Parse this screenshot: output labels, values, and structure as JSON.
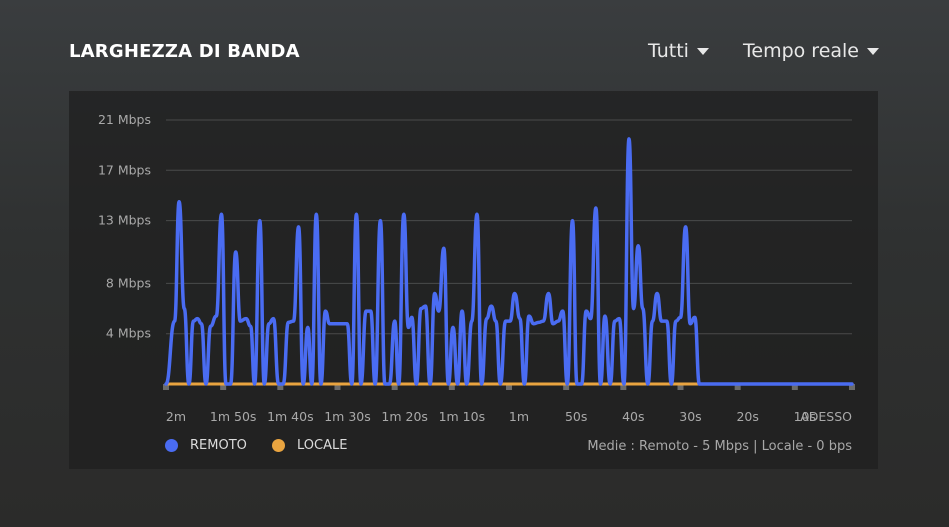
{
  "header": {
    "title": "LARGHEZZA DI BANDA",
    "filter_label": "Tutti",
    "range_label": "Tempo reale"
  },
  "legend": {
    "remote_label": "REMOTO",
    "local_label": "LOCALE"
  },
  "averages_text": "Medie : Remoto  -  5 Mbps | Locale  -  0 bps",
  "colors": {
    "remote": "#4a6cf2",
    "local": "#e9a440",
    "grid": "#4a4b4b",
    "tick": "#a9a9a9"
  },
  "chart_data": {
    "type": "line",
    "title": "LARGHEZZA DI BANDA",
    "xlabel": "",
    "ylabel": "",
    "x_ticks": [
      "2m",
      "1m 50s",
      "1m 40s",
      "1m 30s",
      "1m 20s",
      "1m 10s",
      "1m",
      "50s",
      "40s",
      "30s",
      "20s",
      "10s",
      "ADESSO"
    ],
    "y_ticks": [
      "21 Mbps",
      "17 Mbps",
      "13 Mbps",
      "8 Mbps",
      "4 Mbps"
    ],
    "y_tick_values": [
      21,
      17,
      13,
      8,
      4
    ],
    "ylim": [
      0,
      21
    ],
    "xlim_seconds_ago": [
      120,
      0
    ],
    "grid": true,
    "legend_position": "bottom-left",
    "series": [
      {
        "name": "REMOTO",
        "color": "#4a6cf2",
        "points_seconds_ago_mbps": [
          [
            120,
            0
          ],
          [
            118.5,
            5
          ],
          [
            117.7,
            14.5
          ],
          [
            116.8,
            6
          ],
          [
            116.0,
            0
          ],
          [
            115.2,
            5
          ],
          [
            114.5,
            5.2
          ],
          [
            113.8,
            4.8
          ],
          [
            113.0,
            0
          ],
          [
            112.2,
            4.6
          ],
          [
            111.2,
            5.4
          ],
          [
            110.3,
            13.5
          ],
          [
            109.5,
            0
          ],
          [
            108.7,
            0
          ],
          [
            107.8,
            10.5
          ],
          [
            107.0,
            5
          ],
          [
            106.0,
            5.2
          ],
          [
            105.2,
            4.6
          ],
          [
            104.5,
            0
          ],
          [
            103.6,
            13
          ],
          [
            102.8,
            0
          ],
          [
            102.0,
            4.8
          ],
          [
            101.2,
            5.2
          ],
          [
            100.3,
            0
          ],
          [
            99.5,
            0
          ],
          [
            98.6,
            4.9
          ],
          [
            97.7,
            5
          ],
          [
            96.8,
            12.5
          ],
          [
            96.0,
            0
          ],
          [
            95.2,
            4.5
          ],
          [
            94.5,
            0
          ],
          [
            93.7,
            13.5
          ],
          [
            92.9,
            0
          ],
          [
            92.1,
            5.8
          ],
          [
            91.4,
            4.8
          ],
          [
            90.6,
            4.8
          ],
          [
            89.8,
            4.8
          ],
          [
            89.0,
            4.8
          ],
          [
            88.3,
            4.8
          ],
          [
            87.5,
            0
          ],
          [
            86.7,
            13.5
          ],
          [
            85.9,
            0
          ],
          [
            85.0,
            5.8
          ],
          [
            84.2,
            5.8
          ],
          [
            83.4,
            0
          ],
          [
            82.5,
            13
          ],
          [
            81.7,
            0
          ],
          [
            80.9,
            0
          ],
          [
            80.0,
            5
          ],
          [
            79.3,
            0
          ],
          [
            78.4,
            13.5
          ],
          [
            77.6,
            4.5
          ],
          [
            77.0,
            5.3
          ],
          [
            76.2,
            0
          ],
          [
            75.4,
            6
          ],
          [
            74.6,
            6.2
          ],
          [
            73.8,
            0
          ],
          [
            73.0,
            7.2
          ],
          [
            72.3,
            5.8
          ],
          [
            71.4,
            10.8
          ],
          [
            70.6,
            0
          ],
          [
            69.8,
            4.5
          ],
          [
            69.0,
            0
          ],
          [
            68.2,
            5.8
          ],
          [
            67.4,
            0
          ],
          [
            66.5,
            5
          ],
          [
            65.6,
            13.5
          ],
          [
            64.8,
            0
          ],
          [
            63.9,
            5.2
          ],
          [
            63.1,
            6.2
          ],
          [
            62.3,
            5
          ],
          [
            61.5,
            0
          ],
          [
            60.6,
            5
          ],
          [
            59.8,
            5
          ],
          [
            59.0,
            7.2
          ],
          [
            58.1,
            5.2
          ],
          [
            57.3,
            0
          ],
          [
            56.5,
            5.4
          ],
          [
            55.7,
            4.8
          ],
          [
            54.8,
            4.9
          ],
          [
            54.0,
            5
          ],
          [
            53.1,
            7.2
          ],
          [
            52.3,
            4.8
          ],
          [
            51.4,
            5
          ],
          [
            50.6,
            5.8
          ],
          [
            49.8,
            0
          ],
          [
            48.9,
            13
          ],
          [
            48.1,
            0
          ],
          [
            47.3,
            0
          ],
          [
            46.5,
            5.8
          ],
          [
            45.7,
            5.2
          ],
          [
            44.8,
            14
          ],
          [
            44.0,
            0
          ],
          [
            43.2,
            5.4
          ],
          [
            42.3,
            0
          ],
          [
            41.5,
            5
          ],
          [
            40.7,
            5.2
          ],
          [
            39.9,
            0
          ],
          [
            39.0,
            19.5
          ],
          [
            38.2,
            6
          ],
          [
            37.4,
            11
          ],
          [
            36.6,
            6
          ],
          [
            35.7,
            0
          ],
          [
            34.9,
            5
          ],
          [
            34.1,
            7.2
          ],
          [
            33.3,
            5
          ],
          [
            32.4,
            5
          ],
          [
            31.6,
            0
          ],
          [
            30.8,
            5
          ],
          [
            30.0,
            5.3
          ],
          [
            29.1,
            12.5
          ],
          [
            28.3,
            4.8
          ],
          [
            27.5,
            5.3
          ],
          [
            26.7,
            0
          ],
          [
            20,
            0
          ],
          [
            10,
            0
          ],
          [
            0,
            0
          ]
        ]
      },
      {
        "name": "LOCALE",
        "color": "#e9a440",
        "points_seconds_ago_mbps": [
          [
            120,
            0
          ],
          [
            0,
            0
          ]
        ]
      }
    ]
  }
}
